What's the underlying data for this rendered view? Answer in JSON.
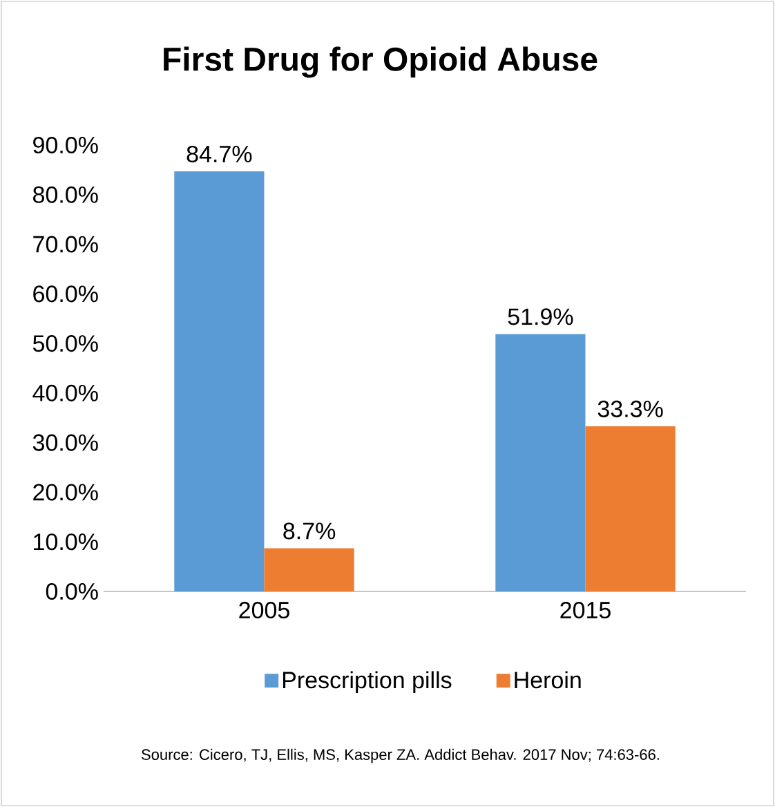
{
  "chart_data": {
    "type": "bar",
    "title": "First Drug for Opioid Abuse",
    "categories": [
      "2005",
      "2015"
    ],
    "series": [
      {
        "name": "Prescription pills",
        "color": "#5b9bd5",
        "values": [
          84.7,
          51.9
        ],
        "value_labels": [
          "84.7%",
          "51.9%"
        ]
      },
      {
        "name": "Heroin",
        "color": "#ed7d31",
        "values": [
          8.7,
          33.3
        ],
        "value_labels": [
          "8.7%",
          "33.3%"
        ]
      }
    ],
    "ylim": [
      0,
      90
    ],
    "yticks": [
      {
        "value": 0,
        "label": "0.0%"
      },
      {
        "value": 10,
        "label": "10.0%"
      },
      {
        "value": 20,
        "label": "20.0%"
      },
      {
        "value": 30,
        "label": "30.0%"
      },
      {
        "value": 40,
        "label": "40.0%"
      },
      {
        "value": 50,
        "label": "50.0%"
      },
      {
        "value": 60,
        "label": "60.0%"
      },
      {
        "value": 70,
        "label": "70.0%"
      },
      {
        "value": 80,
        "label": "80.0%"
      },
      {
        "value": 90,
        "label": "90.0%"
      }
    ],
    "grid": false,
    "legend": "bottom",
    "annotations": [
      "Source:  Cicero, TJ, Ellis, MS, Kasper ZA. Addict Behav. 2017 Nov; 74:63-66."
    ]
  }
}
